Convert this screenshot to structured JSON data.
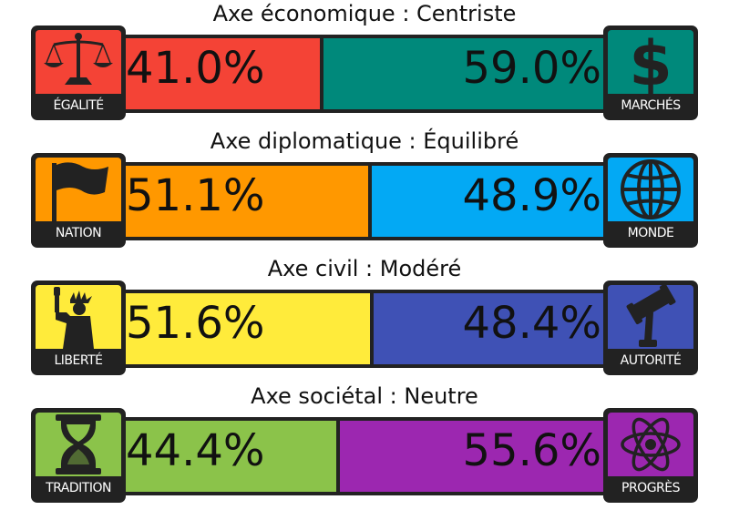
{
  "axes": [
    {
      "title": "Axe économique : Centriste",
      "left": {
        "label": "ÉGALITÉ",
        "percent_text": "41.0%",
        "share": 41.0,
        "color": "#f44336",
        "icon": "scales-icon"
      },
      "right": {
        "label": "MARCHÉS",
        "percent_text": "59.0%",
        "share": 59.0,
        "color": "#00897b",
        "icon": "dollar-icon"
      }
    },
    {
      "title": "Axe diplomatique : Équilibré",
      "left": {
        "label": "NATION",
        "percent_text": "51.1%",
        "share": 51.1,
        "color": "#ff9800",
        "icon": "flag-icon"
      },
      "right": {
        "label": "MONDE",
        "percent_text": "48.9%",
        "share": 48.9,
        "color": "#03a9f4",
        "icon": "globe-icon"
      }
    },
    {
      "title": "Axe civil : Modéré",
      "left": {
        "label": "LIBERTÉ",
        "percent_text": "51.6%",
        "share": 51.6,
        "color": "#ffeb3b",
        "icon": "statue-of-liberty-icon"
      },
      "right": {
        "label": "AUTORITÉ",
        "percent_text": "48.4%",
        "share": 48.4,
        "color": "#3f51b5",
        "icon": "gavel-icon"
      }
    },
    {
      "title": "Axe sociétal : Neutre",
      "left": {
        "label": "TRADITION",
        "percent_text": "44.4%",
        "share": 44.4,
        "color": "#8bc34a",
        "icon": "hourglass-icon"
      },
      "right": {
        "label": "PROGRÈS",
        "percent_text": "55.6%",
        "share": 55.6,
        "color": "#9c27b0",
        "icon": "atom-icon"
      }
    }
  ]
}
